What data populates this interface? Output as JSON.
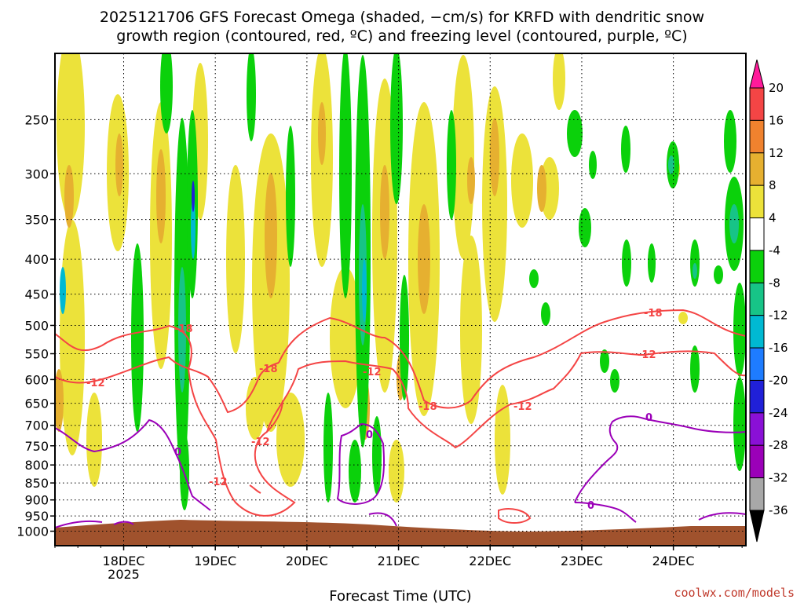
{
  "title_line1": "2025121706 GFS Forecast Omega (shaded, −cm/s) for KRFD with dendritic snow",
  "title_line2": "growth region (contoured, red, ºC) and freezing level (contoured, purple, ºC)",
  "xlabel": "Forecast Time (UTC)",
  "credit": "coolwx.com/models",
  "chart_data": {
    "type": "heatmap",
    "title": "2025121706 GFS Forecast Omega (shaded, −cm/s) for KRFD with dendritic snow growth region (contoured, red, ºC) and freezing level (contoured, purple, ºC)",
    "xlabel": "Forecast Time (UTC)",
    "ylabel": "",
    "x_ticks": [
      "18DEC",
      "19DEC",
      "20DEC",
      "21DEC",
      "22DEC",
      "23DEC",
      "24DEC"
    ],
    "x_tick_hours": [
      0,
      24,
      48,
      72,
      96,
      120,
      144
    ],
    "x_year_label": "2025",
    "xlim_hours": [
      -18,
      163
    ],
    "y_ticks": [
      250,
      300,
      350,
      400,
      450,
      500,
      550,
      600,
      650,
      700,
      750,
      800,
      850,
      900,
      950,
      1000
    ],
    "ylim_hPa": [
      1050,
      200
    ],
    "y_scale": "log",
    "colorbar": {
      "labels": [
        20,
        16,
        12,
        8,
        4,
        -4,
        -8,
        -12,
        -16,
        -20,
        -24,
        -28,
        -32,
        -36
      ],
      "colors": [
        "#ff1a9a",
        "#f44545",
        "#f0822e",
        "#e6b030",
        "#ece23a",
        "#ffffff",
        "#0bd10b",
        "#17c487",
        "#00b9d2",
        "#1e7cff",
        "#2020d8",
        "#8a10d6",
        "#9b00b8",
        "#a8a8a8",
        "#000000"
      ]
    },
    "contours": {
      "dgz_red": [
        "-12",
        "-18"
      ],
      "freezing_purple": [
        "0"
      ]
    },
    "grid": true
  }
}
